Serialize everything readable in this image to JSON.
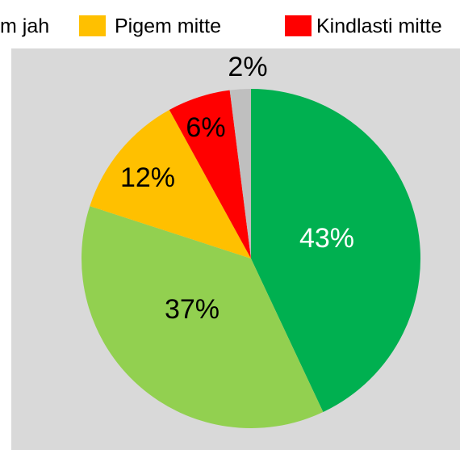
{
  "chart_data": {
    "type": "pie",
    "categories": [
      null,
      "m jah",
      "Pigem mitte",
      "Kindlasti mitte",
      null
    ],
    "values": [
      43,
      37,
      12,
      6,
      2
    ],
    "value_labels": [
      "43%",
      "37%",
      "12%",
      "6%",
      "2%"
    ],
    "colors": [
      "#00b050",
      "#92d050",
      "#ffc000",
      "#ff0000",
      "#bfbfbf"
    ],
    "legend": "top"
  }
}
